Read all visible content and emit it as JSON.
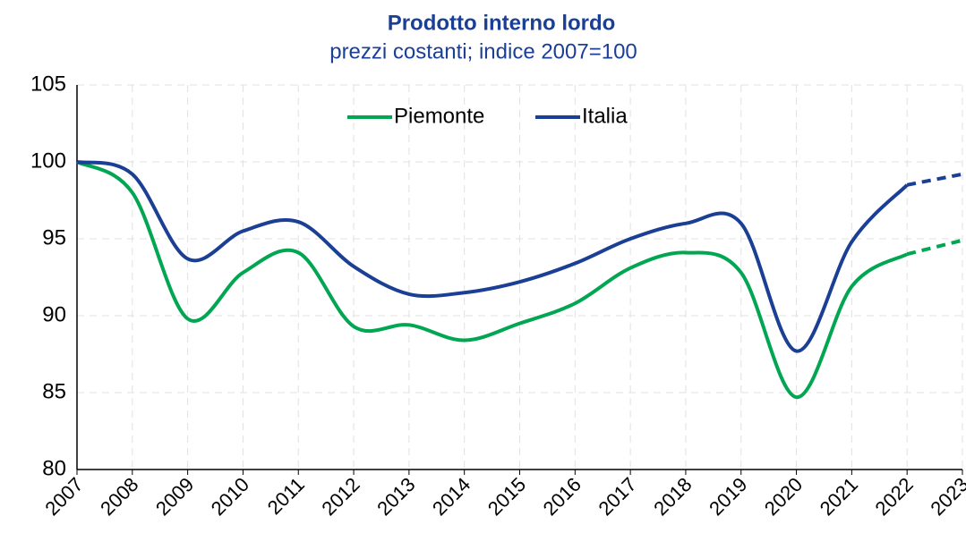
{
  "chart_data": {
    "type": "line",
    "title": "Prodotto interno lordo",
    "subtitle": "prezzi costanti; indice 2007=100",
    "categories": [
      "2007",
      "2008",
      "2009",
      "2010",
      "2011",
      "2012",
      "2013",
      "2014",
      "2015",
      "2016",
      "2017",
      "2018",
      "2019",
      "2020",
      "2021",
      "2022",
      "2023"
    ],
    "series": [
      {
        "name": "Piemonte",
        "color": "#00a651",
        "values": [
          100,
          98.0,
          89.8,
          92.8,
          94.1,
          89.3,
          89.4,
          88.4,
          89.5,
          90.8,
          93.1,
          94.1,
          92.8,
          84.7,
          91.9,
          94.0,
          94.9
        ]
      },
      {
        "name": "Italia",
        "color": "#1a3f94",
        "values": [
          100,
          99.2,
          93.7,
          95.5,
          96.1,
          93.2,
          91.4,
          91.5,
          92.2,
          93.4,
          95.0,
          96.0,
          96.0,
          87.7,
          94.8,
          98.5,
          99.2
        ]
      }
    ],
    "dashed_from": "2022",
    "ylim": [
      80,
      105
    ],
    "yticks": [
      80,
      85,
      90,
      95,
      100,
      105
    ],
    "grid": true,
    "legend": "top"
  }
}
